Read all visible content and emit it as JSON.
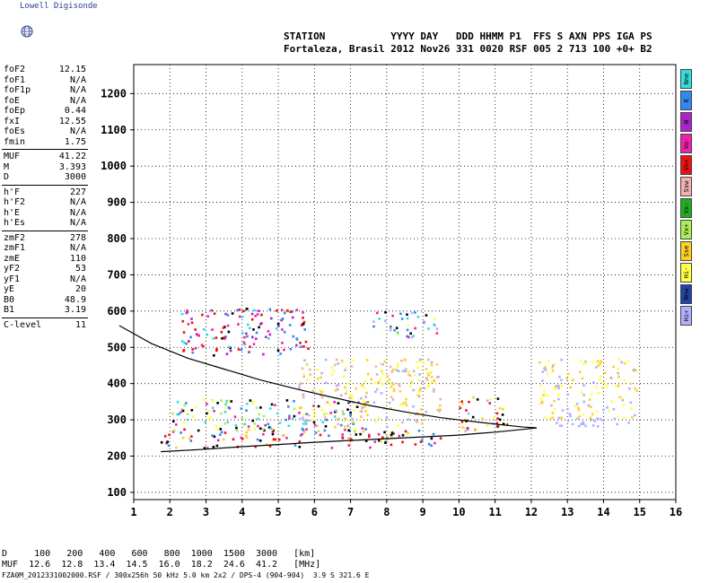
{
  "brand": "Lowell Digisonde",
  "header": {
    "line1": "STATION           YYYY DAY   DDD HHMM P1  FFS S AXN PPS IGA PS",
    "line2": "Fortaleza, Brasil 2012 Nov26 331 0020 RSF 005 2 713 100 +0+ B2"
  },
  "params": [
    {
      "k": "foF2",
      "v": "12.15"
    },
    {
      "k": "foF1",
      "v": "N/A"
    },
    {
      "k": "foF1p",
      "v": "N/A"
    },
    {
      "k": "foE",
      "v": "N/A"
    },
    {
      "k": "foEp",
      "v": "0.44"
    },
    {
      "k": "fxI",
      "v": "12.55"
    },
    {
      "k": "foEs",
      "v": "N/A"
    },
    {
      "k": "fmin",
      "v": "1.75"
    },
    {
      "sep": true
    },
    {
      "k": "MUF",
      "v": "41.22"
    },
    {
      "k": "M",
      "v": "3.393"
    },
    {
      "k": "D",
      "v": "3000"
    },
    {
      "sep": true
    },
    {
      "k": "h'F",
      "v": "227"
    },
    {
      "k": "h'F2",
      "v": "N/A"
    },
    {
      "k": "h'E",
      "v": "N/A"
    },
    {
      "k": "h'Es",
      "v": "N/A"
    },
    {
      "sep": true
    },
    {
      "k": "zmF2",
      "v": "278"
    },
    {
      "k": "zmF1",
      "v": "N/A"
    },
    {
      "k": "zmE",
      "v": "110"
    },
    {
      "k": "yF2",
      "v": "53"
    },
    {
      "k": "yF1",
      "v": "N/A"
    },
    {
      "k": "yE",
      "v": "20"
    },
    {
      "k": "B0",
      "v": "48.9"
    },
    {
      "k": "B1",
      "v": "3.19"
    },
    {
      "sep": true
    },
    {
      "k": "C-level",
      "v": "11"
    }
  ],
  "legend": [
    {
      "label": "Nne",
      "color": "#33dddd"
    },
    {
      "label": "E",
      "color": "#3388ee"
    },
    {
      "label": "W",
      "color": "#aa22cc"
    },
    {
      "label": "Vo-",
      "color": "#ee22aa"
    },
    {
      "label": "Vo+",
      "color": "#ee1111"
    },
    {
      "label": "Ssw",
      "color": "#f0b0b0"
    },
    {
      "label": "Vx-",
      "color": "#22aa22"
    },
    {
      "label": "Vx+",
      "color": "#aaee55"
    },
    {
      "label": "Sse",
      "color": "#ffd020"
    },
    {
      "label": "Hi-",
      "color": "#ffff44"
    },
    {
      "label": "Nnw",
      "color": "#2244aa"
    },
    {
      "label": "Hi+",
      "color": "#b0b0ff"
    }
  ],
  "footer": {
    "line1": "D     100   200   400   600   800  1000  1500  3000   [km]",
    "line2": "MUF  12.6  12.8  13.4  14.5  16.0  18.2  24.6  41.2   [MHz]",
    "line3": "FZA0M_2012331002000.RSF / 300x256h 50 kHz 5.0 km 2x2 / DPS-4 (904-904)  3.9 S 321.6 E"
  },
  "chart_data": {
    "type": "scatter",
    "xlim": [
      1,
      16
    ],
    "ylim": [
      80,
      1280
    ],
    "xticks": [
      1,
      2,
      3,
      4,
      5,
      6,
      7,
      8,
      9,
      10,
      11,
      12,
      13,
      14,
      15,
      16
    ],
    "yticks": [
      100,
      200,
      300,
      400,
      500,
      600,
      700,
      800,
      900,
      1000,
      1100,
      1200
    ],
    "grid": true,
    "trace_profile_upper": [
      [
        0.6,
        560
      ],
      [
        1.5,
        510
      ],
      [
        2.5,
        470
      ],
      [
        3.5,
        440
      ],
      [
        4.5,
        410
      ],
      [
        5.5,
        385
      ],
      [
        6.5,
        362
      ],
      [
        7.5,
        340
      ],
      [
        8.5,
        322
      ],
      [
        9.5,
        306
      ],
      [
        10.5,
        294
      ],
      [
        11.2,
        286
      ],
      [
        11.8,
        280
      ],
      [
        12.15,
        278
      ]
    ],
    "trace_profile_lower": [
      [
        1.75,
        212
      ],
      [
        3,
        219
      ],
      [
        4,
        226
      ],
      [
        5,
        232
      ],
      [
        6,
        238
      ],
      [
        7,
        243
      ],
      [
        8,
        248
      ],
      [
        9,
        253
      ],
      [
        10,
        258
      ],
      [
        10.5,
        262
      ],
      [
        11,
        266
      ],
      [
        11.5,
        271
      ],
      [
        11.9,
        275
      ],
      [
        12.15,
        278
      ]
    ],
    "echo_clusters": [
      {
        "x": [
          1.7,
          9.5
        ],
        "y": [
          225,
          280
        ],
        "colors": [
          "#ee1111",
          "#000000",
          "#3388ee",
          "#ee22aa",
          "#ffd020"
        ]
      },
      {
        "x": [
          2,
          7.5
        ],
        "y": [
          270,
          360
        ],
        "colors": [
          "#33dddd",
          "#3388ee",
          "#ee22aa",
          "#ffff44",
          "#000000",
          "#aaee55"
        ]
      },
      {
        "x": [
          5.5,
          9.5
        ],
        "y": [
          280,
          470
        ],
        "colors": [
          "#ffff44",
          "#ffd020",
          "#b0b0ff",
          "#f0b0b0"
        ]
      },
      {
        "x": [
          7.6,
          9.3
        ],
        "y": [
          380,
          470
        ],
        "colors": [
          "#ffff44",
          "#ffd020",
          "#b0b0ff"
        ]
      },
      {
        "x": [
          2.3,
          5.8
        ],
        "y": [
          480,
          610
        ],
        "colors": [
          "#ee22aa",
          "#33dddd",
          "#000000",
          "#3388ee",
          "#aa22cc",
          "#ee1111"
        ]
      },
      {
        "x": [
          7.6,
          9.4
        ],
        "y": [
          530,
          600
        ],
        "colors": [
          "#33dddd",
          "#3388ee",
          "#ee22aa",
          "#000000",
          "#b0b0ff",
          "#ffff44"
        ]
      },
      {
        "x": [
          10,
          11.3
        ],
        "y": [
          270,
          370
        ],
        "colors": [
          "#ee1111",
          "#000000",
          "#ffd020",
          "#ffff44",
          "#b0b0ff"
        ]
      },
      {
        "x": [
          12.3,
          14.8
        ],
        "y": [
          285,
          310
        ],
        "colors": [
          "#b0b0ff"
        ]
      },
      {
        "x": [
          12.2,
          14.9
        ],
        "y": [
          300,
          470
        ],
        "colors": [
          "#ffff44",
          "#ffd020",
          "#b0b0ff"
        ]
      }
    ]
  }
}
